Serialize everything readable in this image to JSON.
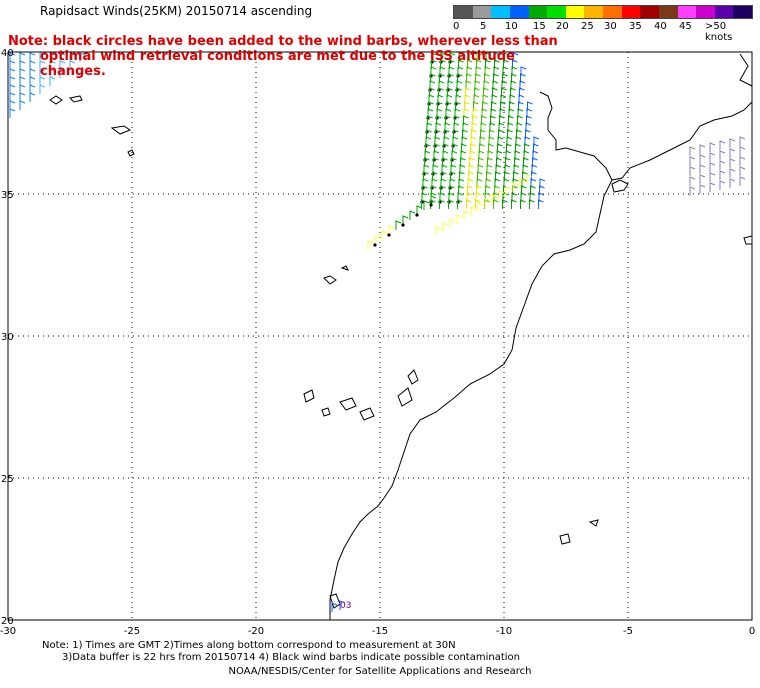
{
  "title": "Rapidsact Winds(25KM) 20150714 ascending",
  "note": {
    "line1": "Note: black circles have been added to the wind barbs, wherever less than",
    "line2": "optimal wind retrieval conditions are met due to the ISS altitude changes."
  },
  "color_scale": {
    "labels": [
      "0",
      "5",
      "10",
      "15",
      "20",
      "25",
      "30",
      "35",
      "40",
      "45",
      ">50 knots"
    ],
    "colors": [
      "#555555",
      "#9a9a9a",
      "#00bfff",
      "#0060ff",
      "#00aa00",
      "#00e000",
      "#ffff00",
      "#ffb400",
      "#ff7000",
      "#ff0000",
      "#a00000",
      "#7a3a1a",
      "#ff40ff",
      "#cc00cc",
      "#5a00aa",
      "#200060"
    ]
  },
  "map": {
    "lon_ticks": [
      "-30",
      "-25",
      "-20",
      "-15",
      "-10",
      "-5",
      "0"
    ],
    "lat_ticks": [
      "40",
      "35",
      "30",
      "25",
      "20"
    ],
    "lon_range": [
      -30,
      0
    ],
    "lat_range": [
      20,
      40
    ],
    "grid": true,
    "label_near_coast": "03"
  },
  "footer": {
    "line1": "Note: 1) Times are GMT 2)Times along bottom correspond to measurement at 30N",
    "line2": "3)Data buffer is 22 hrs from 20150714 4) Black wind barbs indicate possible contamination",
    "line3": "NOAA/NESDIS/Center for Satellite Applications and Research"
  }
}
